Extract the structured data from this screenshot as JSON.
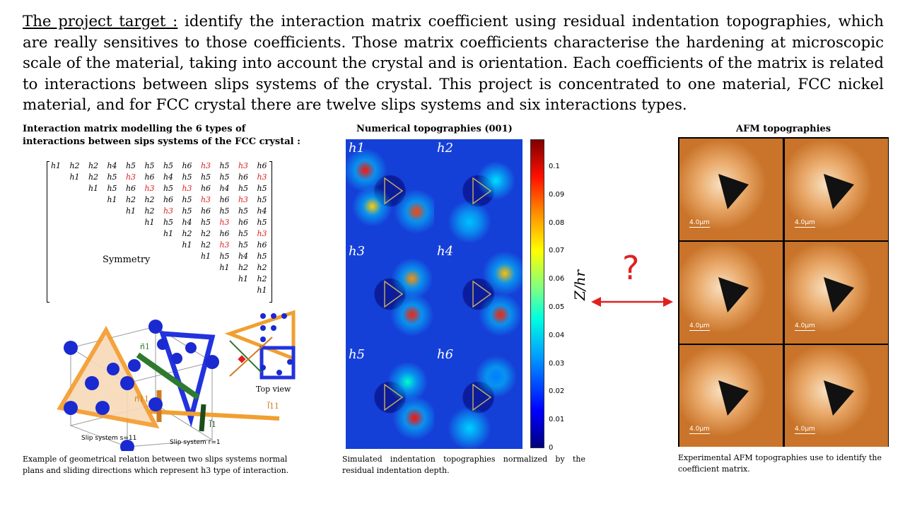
{
  "intro": {
    "label": "The project target :",
    "text": " identify the interaction matrix coefficient using residual indentation topographies, which are really sensitives to those coefficients. Those matrix coefficients characterise the hardening at microscopic scale of the material, taking into account the crystal and is orientation. Each coefficients of the matrix is related to interactions between slips systems of the crystal.  This project is concentrated to one material, FCC nickel material, and for FCC crystal there are twelve slips systems and six interactions types."
  },
  "matrix_section": {
    "heading": "Interaction matrix modelling the 6 types of interactions between sips systems of the FCC crystal :",
    "symmetry": "Symmetry",
    "rows": [
      [
        "h1",
        "h2",
        "h2",
        "h4",
        "h5",
        "h5",
        "h5",
        "h6",
        "h3",
        "h5",
        "h3",
        "h6"
      ],
      [
        "h1",
        "h2",
        "h5",
        "h3",
        "h6",
        "h4",
        "h5",
        "h5",
        "h5",
        "h6",
        "h3"
      ],
      [
        "h1",
        "h5",
        "h6",
        "h3",
        "h5",
        "h3",
        "h6",
        "h4",
        "h5",
        "h5"
      ],
      [
        "h1",
        "h2",
        "h2",
        "h6",
        "h5",
        "h3",
        "h6",
        "h3",
        "h5"
      ],
      [
        "h1",
        "h2",
        "h3",
        "h5",
        "h6",
        "h5",
        "h5",
        "h4"
      ],
      [
        "h1",
        "h5",
        "h4",
        "h5",
        "h3",
        "h6",
        "h5"
      ],
      [
        "h1",
        "h2",
        "h2",
        "h6",
        "h5",
        "h3"
      ],
      [
        "h1",
        "h2",
        "h3",
        "h5",
        "h6"
      ],
      [
        "h1",
        "h5",
        "h4",
        "h5"
      ],
      [
        "h1",
        "h2",
        "h2"
      ],
      [
        "h1",
        "h2"
      ],
      [
        "h1"
      ]
    ],
    "caption": "Example of geometrical relation between two slips systems normal plans and sliding directions which represent h3 type of interaction."
  },
  "crystal_figure": {
    "label_n1": "n⃗1",
    "label_n11": "n⃗11",
    "label_l1": "l⃗1",
    "label_l11": "l⃗11",
    "label_slip11": "Slip system s=11",
    "label_slip1": "Slip system r=1",
    "label_top": "Top view"
  },
  "numerical": {
    "heading": "Numerical topographies (001)",
    "panels": [
      "h1",
      "h2",
      "h3",
      "h4",
      "h5",
      "h6"
    ],
    "colorbar_label": "Z/hr",
    "colorbar_ticks": [
      "0.1",
      "0.09",
      "0.08",
      "0.07",
      "0.06",
      "0.05",
      "0.04",
      "0.03",
      "0.02",
      "0.01",
      "0"
    ],
    "caption": "Simulated indentation topographies normalized by the residual indentation depth."
  },
  "question_mark": "?",
  "afm": {
    "heading": "AFM topographies",
    "scales": [
      "4.0μm",
      "4.0μm",
      "4.0μm",
      "4.0μm",
      "4.0μm",
      "4.0μm"
    ],
    "caption": "Experimental AFM topographies use to identify the coefficient matrix."
  },
  "colors": {
    "red": "#e02020",
    "afm_orange": "#c9742a",
    "blue_bg": "#1540d8"
  }
}
